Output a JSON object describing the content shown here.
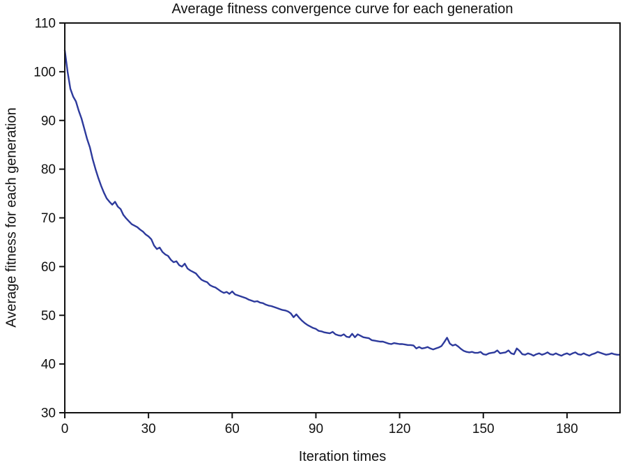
{
  "colors": {
    "line": "#2d3a9c",
    "axis": "#111111",
    "text": "#111111",
    "background": "#ffffff"
  },
  "chart_data": {
    "type": "line",
    "title": "Average fitness convergence curve for each generation",
    "xlabel": "Iteration times",
    "ylabel": "Average fitness for each generation",
    "xlim": [
      0,
      199
    ],
    "ylim": [
      30,
      110
    ],
    "xticks": [
      0,
      30,
      60,
      90,
      120,
      150,
      180
    ],
    "yticks": [
      30,
      40,
      50,
      60,
      70,
      80,
      90,
      100,
      110
    ],
    "grid": false,
    "legend_position": "none",
    "series": [
      {
        "name": "average-fitness",
        "color": "#2d3a9c",
        "x_start": 0,
        "x_step": 1,
        "values": [
          104.4,
          100.0,
          96.5,
          94.9,
          93.9,
          92.0,
          90.4,
          88.3,
          86.2,
          84.5,
          82.0,
          80.0,
          78.2,
          76.6,
          75.2,
          74.0,
          73.3,
          72.7,
          73.3,
          72.3,
          71.8,
          70.6,
          69.9,
          69.3,
          68.7,
          68.4,
          68.1,
          67.6,
          67.2,
          66.6,
          66.2,
          65.6,
          64.3,
          63.6,
          63.9,
          63.0,
          62.5,
          62.2,
          61.4,
          60.9,
          61.1,
          60.3,
          60.0,
          60.6,
          59.6,
          59.2,
          58.9,
          58.6,
          57.9,
          57.3,
          57.0,
          56.8,
          56.2,
          55.9,
          55.7,
          55.3,
          54.9,
          54.6,
          54.8,
          54.4,
          54.9,
          54.3,
          54.1,
          53.9,
          53.7,
          53.5,
          53.2,
          53.0,
          52.8,
          52.9,
          52.6,
          52.5,
          52.2,
          52.0,
          51.9,
          51.7,
          51.5,
          51.3,
          51.1,
          51.0,
          50.8,
          50.4,
          49.6,
          50.2,
          49.5,
          48.9,
          48.4,
          48.0,
          47.7,
          47.4,
          47.2,
          46.8,
          46.7,
          46.5,
          46.4,
          46.3,
          46.6,
          46.1,
          45.9,
          45.8,
          46.1,
          45.6,
          45.5,
          46.2,
          45.5,
          46.1,
          45.8,
          45.5,
          45.4,
          45.3,
          44.9,
          44.8,
          44.7,
          44.6,
          44.6,
          44.4,
          44.2,
          44.1,
          44.3,
          44.2,
          44.1,
          44.1,
          44.0,
          43.9,
          43.9,
          43.8,
          43.2,
          43.5,
          43.2,
          43.3,
          43.5,
          43.2,
          43.0,
          43.2,
          43.4,
          43.7,
          44.5,
          45.4,
          44.2,
          43.8,
          44.0,
          43.6,
          43.1,
          42.7,
          42.5,
          42.4,
          42.5,
          42.3,
          42.3,
          42.5,
          42.0,
          41.9,
          42.2,
          42.3,
          42.4,
          42.8,
          42.2,
          42.3,
          42.4,
          42.8,
          42.2,
          42.0,
          43.2,
          42.7,
          42.0,
          41.9,
          42.2,
          42.0,
          41.7,
          42.0,
          42.2,
          41.9,
          42.1,
          42.4,
          42.0,
          41.9,
          42.2,
          41.9,
          41.7,
          42.0,
          42.2,
          41.9,
          42.2,
          42.4,
          42.0,
          41.9,
          42.2,
          41.9,
          41.7,
          42.0,
          42.2,
          42.5,
          42.3,
          42.1,
          41.9,
          42.0,
          42.2,
          42.0,
          41.9,
          41.9
        ]
      }
    ]
  }
}
